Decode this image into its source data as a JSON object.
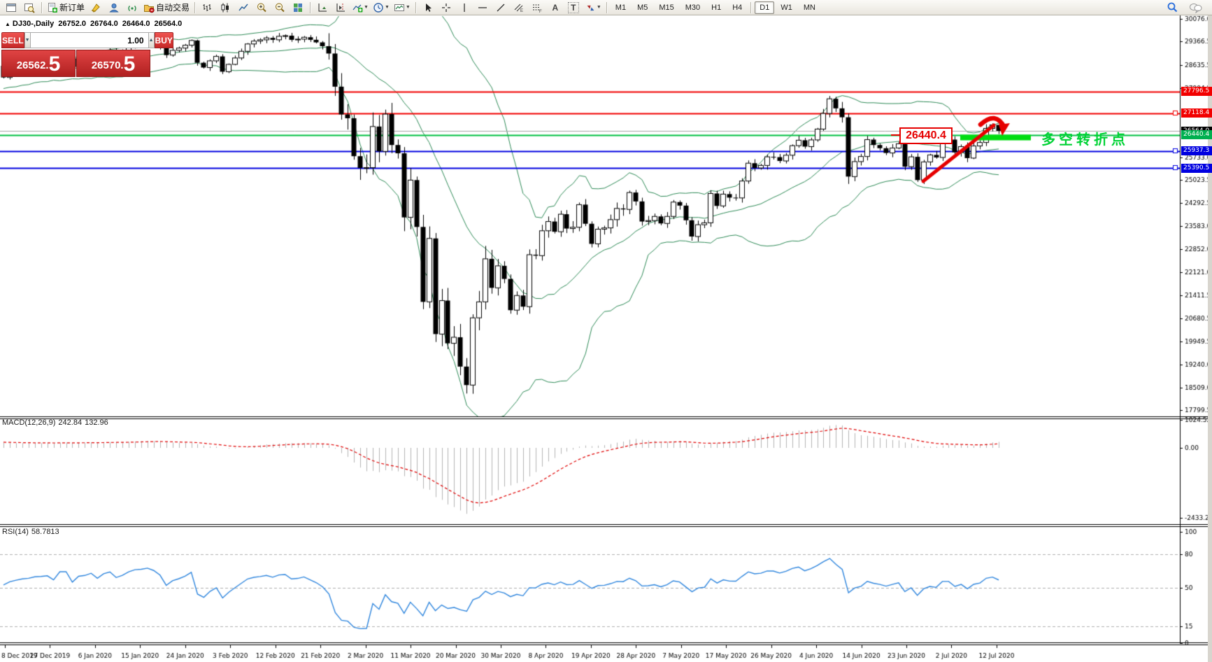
{
  "toolbar": {
    "new_order_label": "新订单",
    "autotrading_label": "自动交易",
    "timeframes": [
      "M1",
      "M5",
      "M15",
      "M30",
      "H1",
      "H4",
      "D1",
      "W1",
      "MN"
    ],
    "active_timeframe": "D1"
  },
  "header": {
    "symbol_title": "DJ30-,Daily",
    "open": "26752.0",
    "high": "26764.0",
    "low": "26464.0",
    "close": "26564.0"
  },
  "one_click": {
    "sell_label": "SELL",
    "buy_label": "BUY",
    "volume": "1.00",
    "sell_price_main": "26562.",
    "sell_price_big": "5",
    "buy_price_main": "26570.",
    "buy_price_big": "5"
  },
  "indicators": {
    "macd_title": "MACD(12,26,9)",
    "macd_main": "242.84",
    "macd_signal": "132.96",
    "rsi_title": "RSI(14)",
    "rsi_value": "58.7813"
  },
  "annotations": {
    "price_box": "26440.4",
    "turning_point": "多空转折点"
  },
  "price_lines": [
    {
      "label": "27796.5",
      "price": 27796.5,
      "color": "#f20000",
      "line": "#f20000",
      "marker": false
    },
    {
      "label": "27118.4",
      "price": 27118.4,
      "color": "#f20000",
      "line": "#f20000",
      "marker": true
    },
    {
      "label": "26564.0",
      "price": 26564.0,
      "color": "#000000",
      "line": "#a8a8a8",
      "marker": false
    },
    {
      "label": "26440.4",
      "price": 26440.4,
      "color": "#00b050",
      "line": "#00c040",
      "marker": false
    },
    {
      "label": "25937.3",
      "price": 25937.3,
      "color": "#0000e0",
      "line": "#0000e0",
      "marker": true
    },
    {
      "label": "25390.5",
      "price": 25390.5,
      "color": "#0000e0",
      "line": "#0000e0",
      "marker": true
    }
  ],
  "chart_data": {
    "type": "candlestick",
    "symbol": "DJ30-",
    "timeframe": "Daily",
    "y_axis_ticks": [
      "30076.0",
      "29366.5",
      "28635.5",
      "27904.5",
      "25733.0",
      "25023.5",
      "24292.5",
      "23583.0",
      "22852.0",
      "22121.0",
      "21411.5",
      "20680.5",
      "19949.5",
      "19240.0",
      "18509.0",
      "17799.5"
    ],
    "macd_axis": [
      "1024.52",
      "0.00",
      "-2433.25"
    ],
    "rsi_axis": [
      "100",
      "80",
      "50",
      "15",
      "0"
    ],
    "rsi_levels": [
      80,
      50,
      15
    ],
    "dates": [
      "8 Dec 2019",
      "27 Dec 2019",
      "6 Jan 2020",
      "15 Jan 2020",
      "24 Jan 2020",
      "3 Feb 2020",
      "12 Feb 2020",
      "21 Feb 2020",
      "2 Mar 2020",
      "11 Mar 2020",
      "20 Mar 2020",
      "30 Mar 2020",
      "8 Apr 2020",
      "19 Apr 2020",
      "28 Apr 2020",
      "7 May 2020",
      "17 May 2020",
      "26 May 2020",
      "4 Jun 2020",
      "14 Jun 2020",
      "23 Jun 2020",
      "2 Jul 2020",
      "12 Jul 2020"
    ],
    "bollinger": {
      "period": 20,
      "deviation": 2
    },
    "current_candle": {
      "open": 26752.0,
      "high": 26764.0,
      "low": 26464.0,
      "close": 26564.0
    },
    "closes": [
      28240,
      28380,
      28455,
      28515,
      28540,
      28605,
      28620,
      28645,
      28540,
      28870,
      28870,
      28585,
      28825,
      28860,
      28955,
      28820,
      29010,
      29090,
      28940,
      29030,
      29180,
      29280,
      29300,
      29350,
      29300,
      29200,
      28940,
      29090,
      29160,
      29250,
      29400,
      28700,
      28550,
      28760,
      28900,
      28420,
      28650,
      28850,
      29060,
      29290,
      29380,
      29420,
      29480,
      29420,
      29530,
      29550,
      29420,
      29440,
      29500,
      29420,
      29340,
      29220,
      28990,
      27950,
      27080,
      26960,
      25770,
      25400,
      25410,
      26700,
      25920,
      27090,
      26120,
      25860,
      23850,
      25020,
      23550,
      21200,
      23190,
      20190,
      21240,
      19900,
      20090,
      19170,
      18590,
      20700,
      21200,
      22550,
      21640,
      22330,
      21920,
      20940,
      21400,
      21050,
      22680,
      22650,
      23430,
      23720,
      23400,
      23950,
      23500,
      23540,
      24250,
      23650,
      23020,
      23480,
      23520,
      23780,
      24130,
      24100,
      24630,
      24350,
      23720,
      23750,
      23880,
      23660,
      23880,
      24330,
      24220,
      23760,
      23250,
      23620,
      23680,
      24600,
      24210,
      24580,
      24470,
      24460,
      24990,
      25550,
      25400,
      25480,
      25750,
      25740,
      25620,
      25800,
      26100,
      26270,
      26070,
      26280,
      26620,
      27110,
      27570,
      27270,
      26990,
      25130,
      25600,
      25760,
      26290,
      26120,
      26020,
      25870,
      26025,
      26160,
      25440,
      25750,
      25020,
      25590,
      25810,
      25730,
      26290,
      26290,
      25890,
      26070,
      25710,
      26090,
      26200,
      26640,
      26752,
      26564
    ]
  }
}
